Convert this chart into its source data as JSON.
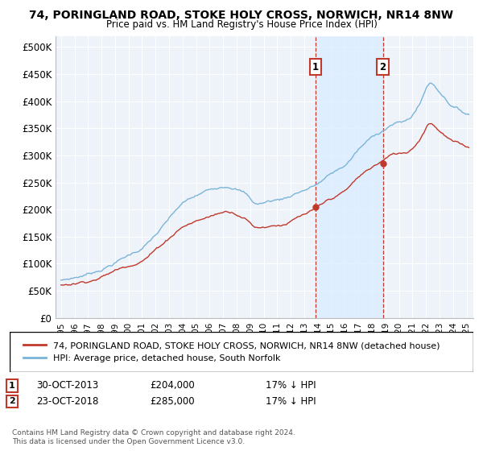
{
  "title": "74, PORINGLAND ROAD, STOKE HOLY CROSS, NORWICH, NR14 8NW",
  "subtitle": "Price paid vs. HM Land Registry's House Price Index (HPI)",
  "legend_line1": "74, PORINGLAND ROAD, STOKE HOLY CROSS, NORWICH, NR14 8NW (detached house)",
  "legend_line2": "HPI: Average price, detached house, South Norfolk",
  "annotation1_label": "1",
  "annotation1_date": "30-OCT-2013",
  "annotation1_price": "£204,000",
  "annotation1_hpi": "17% ↓ HPI",
  "annotation2_label": "2",
  "annotation2_date": "23-OCT-2018",
  "annotation2_price": "£285,000",
  "annotation2_hpi": "17% ↓ HPI",
  "footnote": "Contains HM Land Registry data © Crown copyright and database right 2024.\nThis data is licensed under the Open Government Licence v3.0.",
  "sale1_year": 2013.83,
  "sale1_value": 204000,
  "sale2_year": 2018.81,
  "sale2_value": 285000,
  "hpi_color": "#7ab4d8",
  "sale_color": "#c0392b",
  "vline_color": "#c0392b",
  "shade_color": "#ddeeff",
  "bg_color": "#eef3fa",
  "grid_color": "#ffffff",
  "ylim": [
    0,
    520000
  ],
  "yticks": [
    0,
    50000,
    100000,
    150000,
    200000,
    250000,
    300000,
    350000,
    400000,
    450000,
    500000
  ],
  "ytick_labels": [
    "£0",
    "£50K",
    "£100K",
    "£150K",
    "£200K",
    "£250K",
    "£300K",
    "£350K",
    "£400K",
    "£450K",
    "£500K"
  ],
  "xlim_start": 1994.6,
  "xlim_end": 2025.5,
  "xticks": [
    1995,
    1996,
    1997,
    1998,
    1999,
    2000,
    2001,
    2002,
    2003,
    2004,
    2005,
    2006,
    2007,
    2008,
    2009,
    2010,
    2011,
    2012,
    2013,
    2014,
    2015,
    2016,
    2017,
    2018,
    2019,
    2020,
    2021,
    2022,
    2023,
    2024,
    2025
  ]
}
